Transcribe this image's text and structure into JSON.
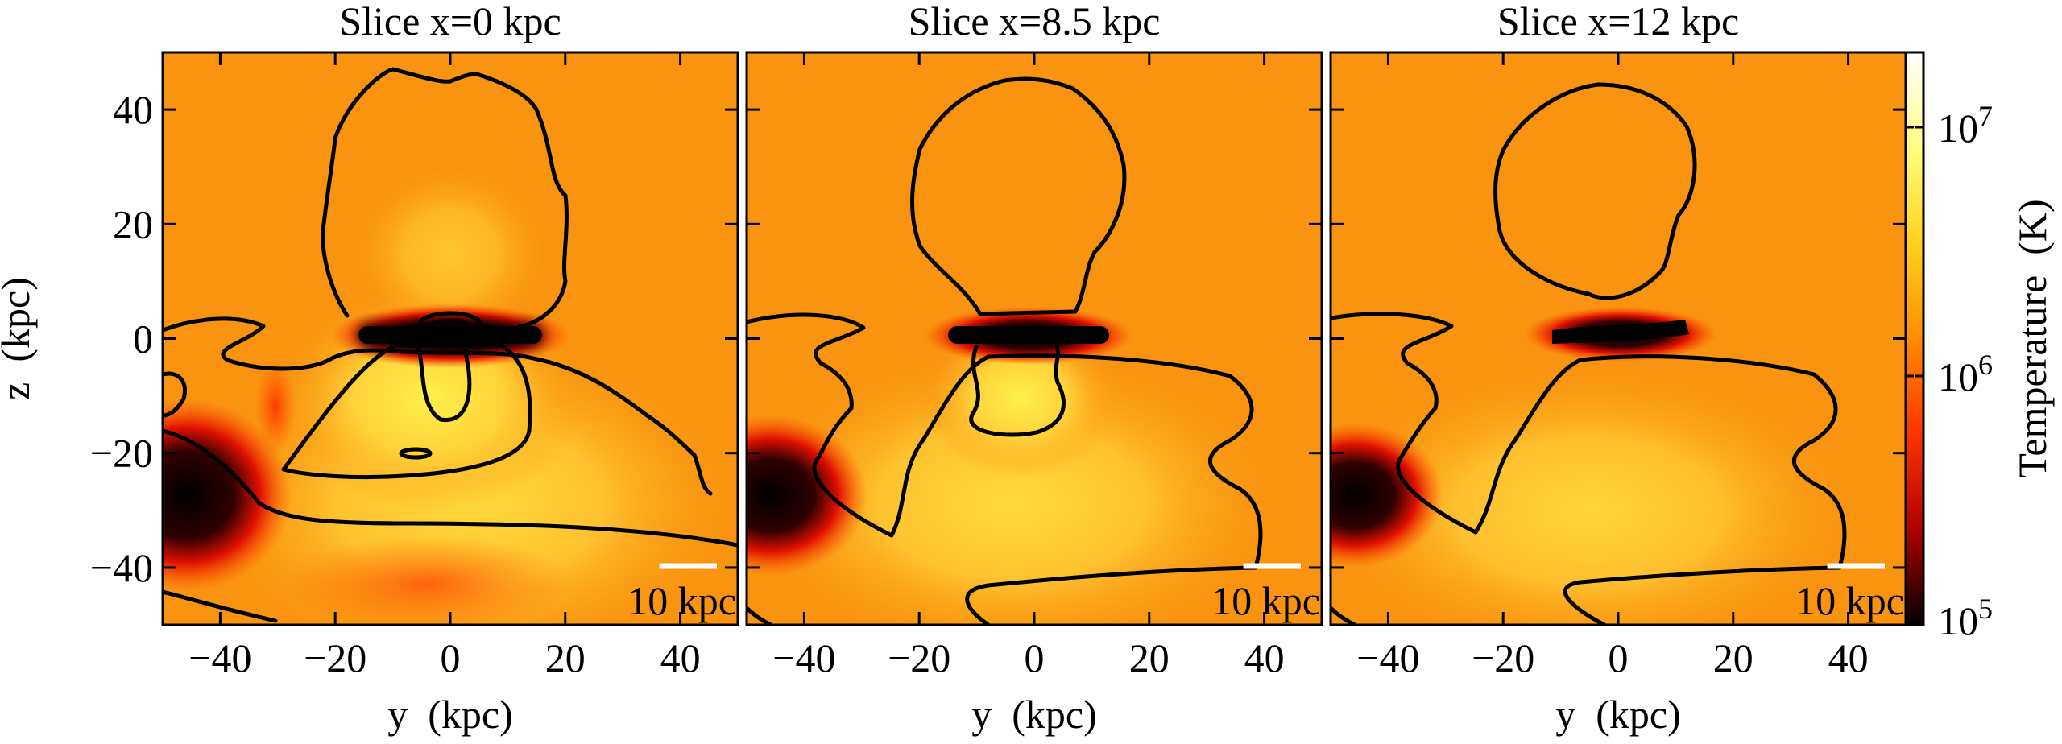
{
  "chart_data": [
    {
      "type": "heatmap",
      "title": "Slice x=0 kpc",
      "xlabel": "y  (kpc)",
      "ylabel": "z  (kpc)",
      "xlim": [
        -50,
        50
      ],
      "ylim": [
        -50,
        50
      ],
      "xticks": [
        {
          "value": -40,
          "label": "−40"
        },
        {
          "value": -20,
          "label": "−20"
        },
        0,
        20,
        40
      ],
      "yticks": [
        {
          "value": -40,
          "label": "−40"
        },
        {
          "value": -20,
          "label": "−20"
        },
        0,
        20,
        40
      ],
      "ytick_labels": true,
      "scale_bar": {
        "value": 10,
        "label": "10 kpc"
      }
    },
    {
      "type": "heatmap",
      "title": "Slice x=8.5 kpc",
      "xlabel": "y  (kpc)",
      "xlim": [
        -50,
        50
      ],
      "ylim": [
        -50,
        50
      ],
      "xticks": [
        {
          "value": -40,
          "label": "−40"
        },
        {
          "value": -20,
          "label": "−20"
        },
        0,
        20,
        40
      ],
      "yticks": [
        -40,
        -20,
        0,
        20,
        40
      ],
      "ytick_labels": false,
      "scale_bar": {
        "value": 10,
        "label": "10 kpc"
      }
    },
    {
      "type": "heatmap",
      "title": "Slice x=12 kpc",
      "xlabel": "y  (kpc)",
      "xlim": [
        -50,
        50
      ],
      "ylim": [
        -50,
        50
      ],
      "xticks": [
        {
          "value": -40,
          "label": "−40"
        },
        {
          "value": -20,
          "label": "−20"
        },
        0,
        20,
        40
      ],
      "yticks": [
        -40,
        -20,
        0,
        20,
        40
      ],
      "ytick_labels": false,
      "scale_bar": {
        "value": 10,
        "label": "10 kpc"
      }
    },
    {
      "type": "colorbar",
      "label": "Temperature  (K)",
      "log": true,
      "clim": [
        100000,
        20000000
      ],
      "ticks": [
        {
          "value": 100000,
          "label": "10^5"
        },
        {
          "value": 1000000,
          "label": "10^6"
        },
        {
          "value": 10000000,
          "label": "10^7"
        }
      ],
      "colormap": [
        "#000000",
        "#b00000",
        "#ff3300",
        "#ff8c00",
        "#ffd21a",
        "#ffff80",
        "#ffffff"
      ]
    }
  ]
}
